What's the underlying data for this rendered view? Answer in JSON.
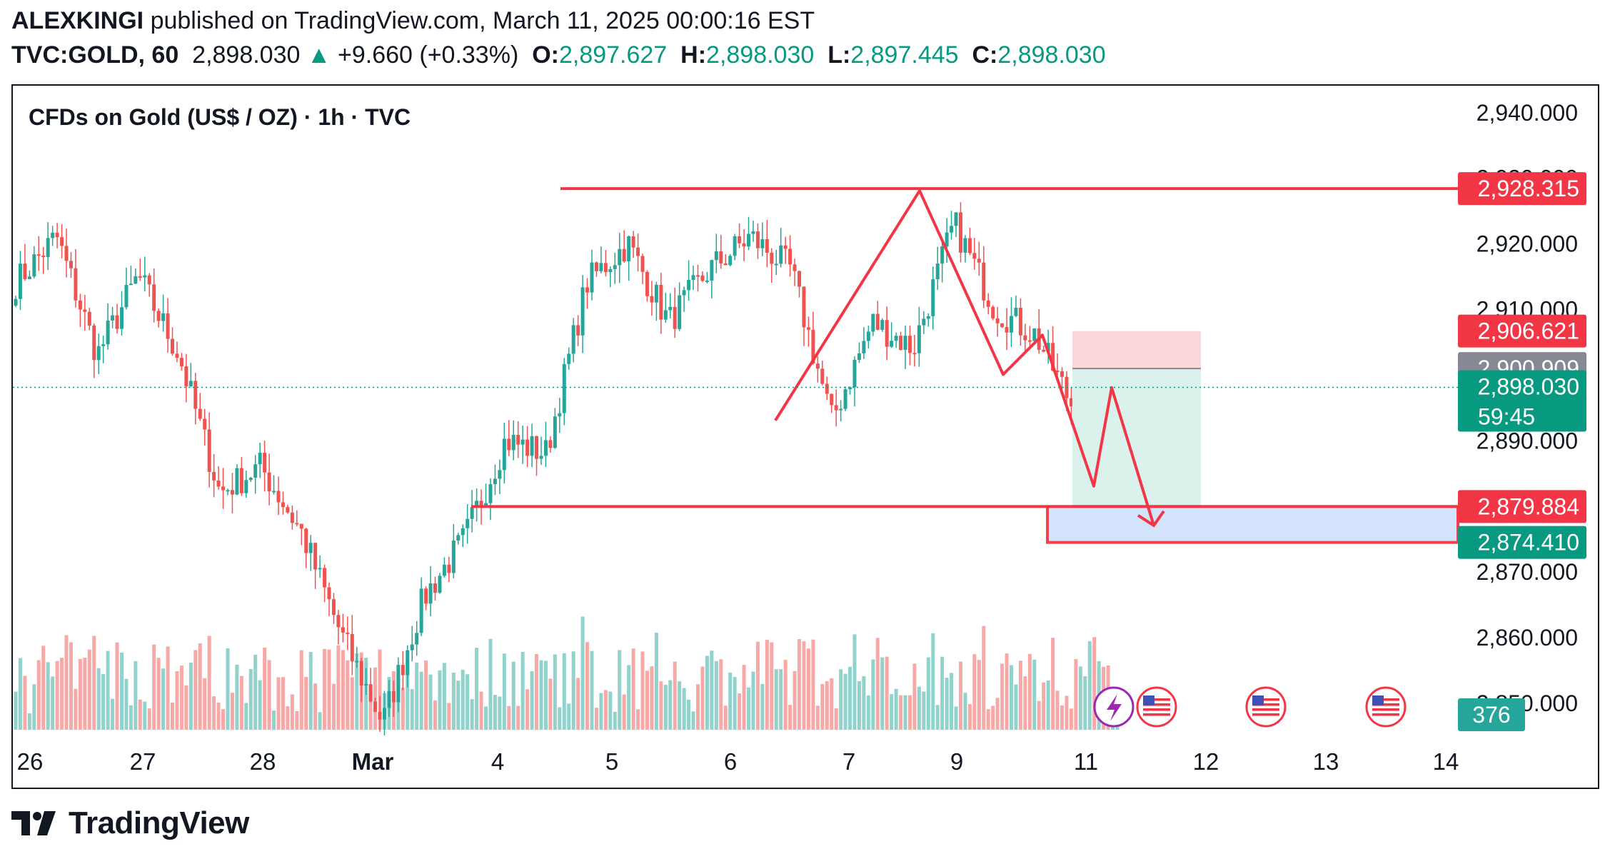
{
  "header": {
    "author": "ALEXKINGI",
    "published": " published on TradingView.com, March 11, 2025 00:00:16 EST",
    "symbol": "TVC:GOLD, 60",
    "price": "2,898.030",
    "change": "+9.660 (+0.33%)",
    "o_label": "O:",
    "o_value": "2,897.627",
    "h_label": "H:",
    "h_value": "2,898.030",
    "l_label": "L:",
    "l_value": "2,897.445",
    "c_label": "C:",
    "c_value": "2,898.030"
  },
  "chart_title": "CFDs on Gold (US$ / OZ) · 1h · TVC",
  "logo_text": "TradingView",
  "colors": {
    "up": "#26a69a",
    "down": "#ef5350",
    "drawing": "#f23645",
    "last_price": "#089981",
    "grey_tag": "#868993",
    "target_fill": "#d2e3fc",
    "profit_fill": "#dbf1ec",
    "loss_fill": "#fbd7da"
  },
  "chart_data": {
    "type": "candlestick",
    "timeframe": "1h",
    "x_ticks": [
      "26",
      "27",
      "28",
      "Mar",
      "4",
      "5",
      "6",
      "7",
      "9",
      "11",
      "12",
      "13",
      "14"
    ],
    "y_ticks": [
      "2,940.000",
      "2,930.000",
      "2,920.000",
      "2,910.000",
      "2,900.000",
      "2,890.000",
      "2,880.000",
      "2,870.000",
      "2,860.000",
      "2,850.000"
    ],
    "y_range": [
      2845,
      2944
    ],
    "price_tags": [
      {
        "label": "2,928.315",
        "value": 2928.315,
        "color": "#f23645"
      },
      {
        "label": "2,906.621",
        "value": 2906.621,
        "color": "#f23645"
      },
      {
        "label": "2,900.909",
        "value": 2900.909,
        "color": "#868993"
      },
      {
        "label": "2,898.030",
        "value": 2898.03,
        "color": "#089981",
        "sub": "59:45"
      },
      {
        "label": "2,879.884",
        "value": 2879.884,
        "color": "#f23645"
      },
      {
        "label": "2,874.410",
        "value": 2874.41,
        "color": "#089981"
      }
    ],
    "volume_tag": "376",
    "approx_close_path": [
      {
        "x": "Feb 26 00:00",
        "y": 2914
      },
      {
        "x": "Feb 26 08:00",
        "y": 2921
      },
      {
        "x": "Feb 26 16:00",
        "y": 2903
      },
      {
        "x": "Feb 27 00:00",
        "y": 2915
      },
      {
        "x": "Feb 27 08:00",
        "y": 2903
      },
      {
        "x": "Feb 27 16:00",
        "y": 2882
      },
      {
        "x": "Feb 28 00:00",
        "y": 2886
      },
      {
        "x": "Feb 28 08:00",
        "y": 2876
      },
      {
        "x": "Feb 28 16:00",
        "y": 2860
      },
      {
        "x": "Mar 3 00:00",
        "y": 2847
      },
      {
        "x": "Mar 3 08:00",
        "y": 2866
      },
      {
        "x": "Mar 3 16:00",
        "y": 2875
      },
      {
        "x": "Mar 4 00:00",
        "y": 2890
      },
      {
        "x": "Mar 4 08:00",
        "y": 2888
      },
      {
        "x": "Mar 4 16:00",
        "y": 2914
      },
      {
        "x": "Mar 5 00:00",
        "y": 2920
      },
      {
        "x": "Mar 5 08:00",
        "y": 2908
      },
      {
        "x": "Mar 5 16:00",
        "y": 2916
      },
      {
        "x": "Mar 6 00:00",
        "y": 2921
      },
      {
        "x": "Mar 6 08:00",
        "y": 2916
      },
      {
        "x": "Mar 6 16:00",
        "y": 2893
      },
      {
        "x": "Mar 7 00:00",
        "y": 2908
      },
      {
        "x": "Mar 7 08:00",
        "y": 2904
      },
      {
        "x": "Mar 7 16:00",
        "y": 2923
      },
      {
        "x": "Mar 10 00:00",
        "y": 2910
      },
      {
        "x": "Mar 10 08:00",
        "y": 2906
      },
      {
        "x": "Mar 10 16:00",
        "y": 2894
      },
      {
        "x": "Mar 11 00:00",
        "y": 2898
      }
    ],
    "drawings": [
      {
        "type": "horizontal_line",
        "price": 2928.315,
        "from": "Mar 4",
        "to": "right_edge"
      },
      {
        "type": "horizontal_line",
        "price": 2879.884,
        "from": "Mar 4",
        "to": "right_edge"
      },
      {
        "type": "zone",
        "from_price": 2874.41,
        "to_price": 2879.884,
        "label": "target zone"
      },
      {
        "type": "pattern_path",
        "points": [
          2893,
          2928,
          2900,
          2906,
          2883,
          2898,
          2877
        ]
      }
    ],
    "position": {
      "type": "short",
      "entry": 2900.909,
      "stop": 2906.621,
      "target": 2876.5
    }
  }
}
